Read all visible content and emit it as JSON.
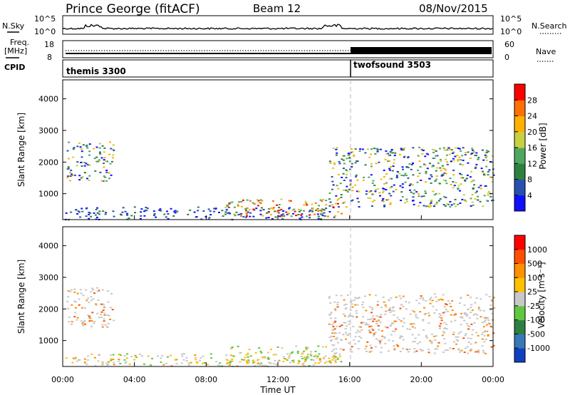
{
  "header": {
    "station": "Prince George (fitACF)",
    "beam": "Beam 12",
    "date": "08/Nov/2015"
  },
  "panels": {
    "noise": {
      "left_label": "N.Sky",
      "right_label": "N.Search",
      "left_ticks": [
        "10^5",
        "10^0"
      ],
      "right_ticks": [
        "10^5",
        "10^0"
      ]
    },
    "freq": {
      "left_label_1": "Freq.",
      "left_label_2": "[MHz]",
      "right_label": "Nave",
      "left_ticks": [
        "18",
        "8"
      ],
      "right_ticks": [
        "60",
        "0"
      ]
    },
    "cpid": {
      "label": "CPID",
      "programs": [
        {
          "name": "themis 3300",
          "start_hour": 0
        },
        {
          "name": "twofsound 3503",
          "start_hour": 16
        }
      ]
    }
  },
  "chart_data": [
    {
      "type": "heatmap",
      "title": "",
      "ylabel": "Slant Range [km]",
      "xlabel": "Time UT",
      "xlim": [
        0,
        24
      ],
      "ylim": [
        180,
        4600
      ],
      "yticks": [
        "1000",
        "2000",
        "3000",
        "4000"
      ],
      "colorbar": {
        "label": "Power [dB]",
        "ticks": [
          "4",
          "8",
          "12",
          "16",
          "20",
          "24",
          "28"
        ],
        "colors": [
          "#1010ff",
          "#2850b0",
          "#2e8040",
          "#50a860",
          "#c8d040",
          "#ffb000",
          "#ff7000",
          "#ff0000"
        ]
      },
      "scatter_regions": [
        {
          "t0": 0.2,
          "t1": 2.8,
          "r0": 1400,
          "r1": 2700,
          "level": "mixed"
        },
        {
          "t0": 0.1,
          "t1": 15.5,
          "r0": 200,
          "r1": 600,
          "level": "low"
        },
        {
          "t0": 9.0,
          "t1": 15.5,
          "r0": 300,
          "r1": 850,
          "level": "high"
        },
        {
          "t0": 14.8,
          "t1": 24,
          "r0": 600,
          "r1": 2500,
          "level": "mixed"
        }
      ]
    },
    {
      "type": "heatmap",
      "title": "",
      "ylabel": "Slant Range [km]",
      "xlabel": "Time UT",
      "xlim": [
        0,
        24
      ],
      "ylim": [
        180,
        4600
      ],
      "yticks": [
        "1000",
        "2000",
        "3000",
        "4000"
      ],
      "xticks": [
        "00:00",
        "04:00",
        "08:00",
        "12:00",
        "16:00",
        "20:00",
        "00:00"
      ],
      "colorbar": {
        "label": "Velocity [m s⁻¹]",
        "ticks": [
          "1000",
          "500",
          "100",
          "25",
          "-25",
          "-100",
          "-500",
          "-1000"
        ],
        "colors": [
          "#1040c0",
          "#3878b8",
          "#2e8040",
          "#60c840",
          "#c8c8c8",
          "#ffc000",
          "#ff9000",
          "#ff5000",
          "#ff0000"
        ]
      }
    }
  ],
  "colors": {
    "ground_scatter": "#c8c8c8",
    "text": "#000000"
  }
}
